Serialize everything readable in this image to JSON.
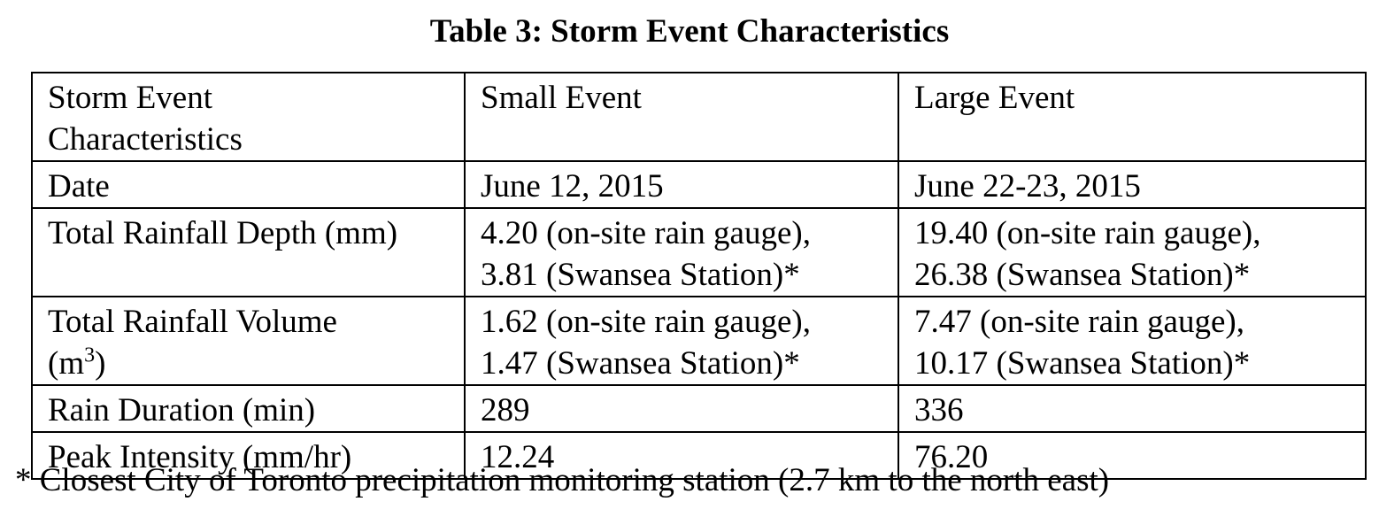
{
  "title": "Table 3:  Storm Event Characteristics",
  "table": {
    "header": {
      "c1_line1": "Storm Event",
      "c1_line2": "Characteristics",
      "c2": "Small Event",
      "c3": "Large Event"
    },
    "rows": [
      {
        "label": "Date",
        "small": "June 12, 2015",
        "large": "June 22-23, 2015"
      },
      {
        "label": "Total Rainfall Depth (mm)",
        "small_line1": "4.20 (on-site rain gauge),",
        "small_line2": "3.81 (Swansea Station)*",
        "large_line1": "19.40 (on-site rain gauge),",
        "large_line2": "26.38 (Swansea Station)*"
      },
      {
        "label_line1": "Total Rainfall Volume",
        "label_line2_open": "(m",
        "label_line2_sup": "3",
        "label_line2_close": ")",
        "small_line1": "1.62 (on-site rain gauge),",
        "small_line2": "1.47 (Swansea Station)*",
        "large_line1": "7.47 (on-site rain gauge),",
        "large_line2": "10.17 (Swansea Station)*"
      },
      {
        "label": "Rain Duration (min)",
        "small": "289",
        "large": "336"
      },
      {
        "label": "Peak Intensity (mm/hr)",
        "small": "12.24",
        "large": "76.20"
      }
    ]
  },
  "footnote": "* Closest City of Toronto precipitation monitoring station (2.7 km to the north east)"
}
